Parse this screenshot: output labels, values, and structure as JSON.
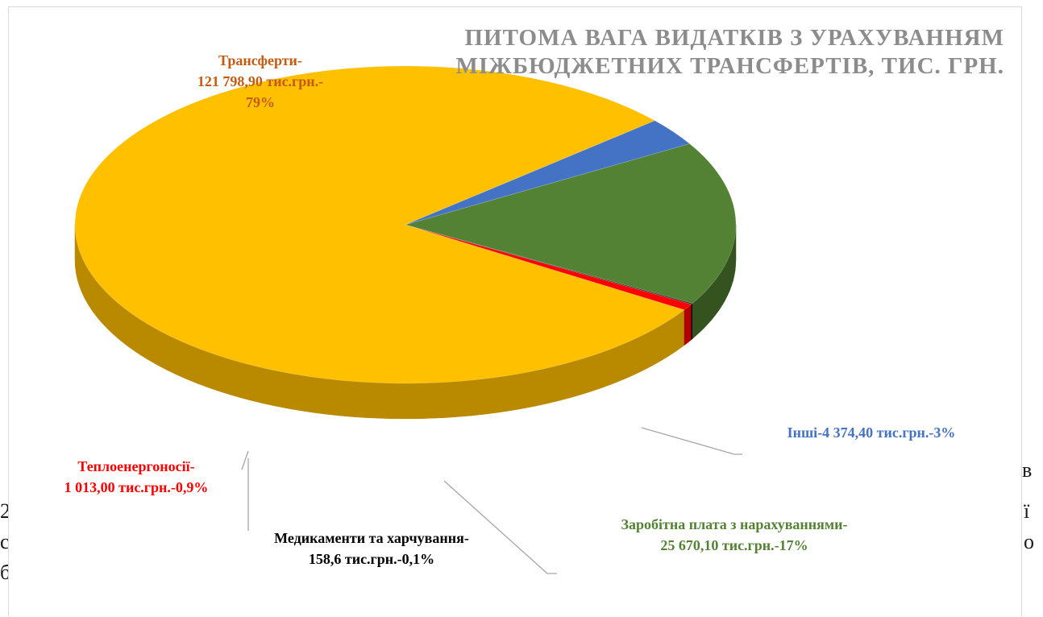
{
  "document": {
    "right_fragments": [
      "в",
      "ї",
      "о"
    ],
    "left_fragments": [
      "2",
      "с",
      "б"
    ]
  },
  "chart_data": {
    "type": "pie",
    "style": "3d",
    "title_lines": [
      "ПИТОМА ВАГА ВИДАТКІВ З УРАХУВАННЯМ",
      "МІЖБЮДЖЕТНИХ ТРАНСФЕРТІВ, ТИС. ГРН."
    ],
    "slices": [
      {
        "name": "Трансферти",
        "value": 121798.9,
        "percent": 79,
        "color": "#FFC000",
        "side_color": "#B98A00",
        "label_lines": [
          "Трансферти-",
          "121 798,90 тис.грн.-",
          "79%"
        ],
        "label_color": "#C55A11"
      },
      {
        "name": "Теплоенергоносії",
        "value": 1013.0,
        "percent": 0.9,
        "color": "#FF0000",
        "side_color": "#B00000",
        "label_lines": [
          "Теплоенергоносії-",
          "1 013,00 тис.грн.-0,9%"
        ],
        "label_color": "#FF0000"
      },
      {
        "name": "Медикаменти та харчування",
        "value": 158.6,
        "percent": 0.1,
        "color": "#1a1a1a",
        "side_color": "#000000",
        "label_lines": [
          "Медикаменти та харчування-",
          "158,6 тис.грн.-0,1%"
        ],
        "label_color": "#000000"
      },
      {
        "name": "Заробітна плата з нарахуваннями",
        "value": 25670.1,
        "percent": 17,
        "color": "#548235",
        "side_color": "#35531f",
        "label_lines": [
          "Заробітна плата з нарахуваннями-",
          "25 670,10 тис.грн.-17%"
        ],
        "label_color": "#548235"
      },
      {
        "name": "Інші",
        "value": 4374.4,
        "percent": 3,
        "color": "#4472C4",
        "side_color": "#1F3864",
        "label_lines": [
          "Інші-4 374,40 тис.грн.-3%"
        ],
        "label_color": "#4472C4"
      }
    ]
  }
}
